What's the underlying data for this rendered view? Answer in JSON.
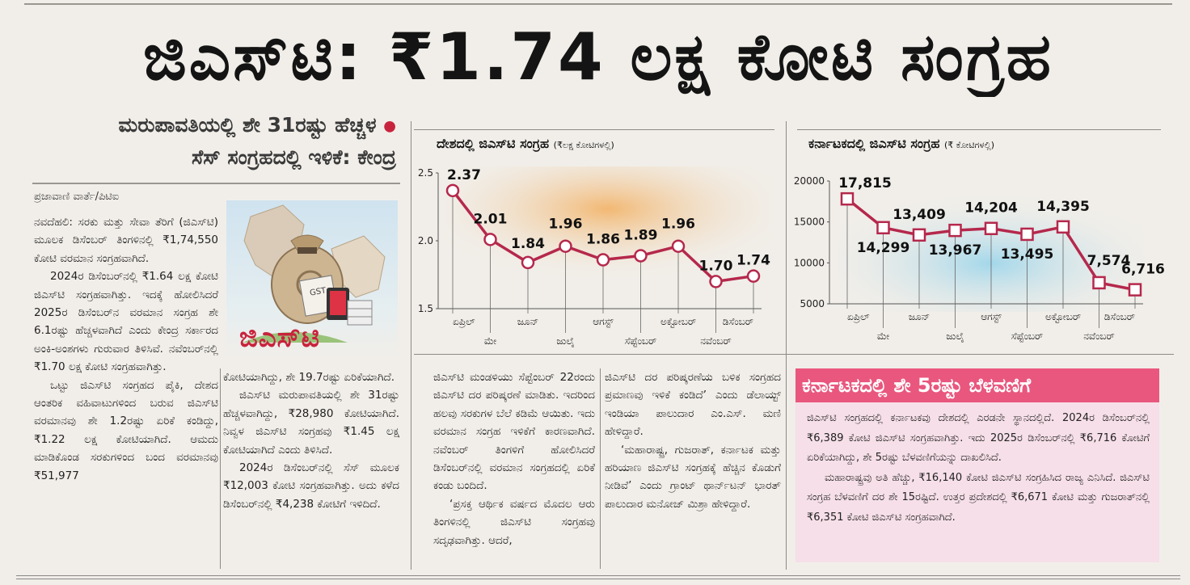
{
  "headline": "ಜಿಎಸ್‌ಟಿ: ₹1.74 ಲಕ್ಷ ಕೋಟಿ ಸಂಗ್ರಹ",
  "subheadline": {
    "line1": "ಮರುಪಾವತಿಯಲ್ಲಿ ಶೇ 31ರಷ್ಟು ಹೆಚ್ಚಳ",
    "line2": "ಸೆಸ್ ಸಂಗ್ರಹದಲ್ಲಿ ಇಳಿಕೆ: ಕೇಂದ್ರ"
  },
  "byline": "ಪ್ರಜಾವಾಣಿ ವಾರ್ತೆ/ಪಿಟಿಐ",
  "image": {
    "overlay_text": "ಜಿಎಸ್‌ಟಿ",
    "tag_text": "GST"
  },
  "columns": {
    "col1": [
      "ನವದೆಹಲಿ: ಸರಕು ಮತ್ತು ಸೇವಾ ತೆರಿಗೆ (ಜಿಎಸ್‌ಟಿ) ಮೂಲಕ ಡಿಸೆಂಬರ್ ತಿಂಗಳಿನಲ್ಲಿ ₹1,74,550 ಕೋಟಿ ವರಮಾನ ಸಂಗ್ರಹವಾಗಿದೆ.",
      "2024ರ ಡಿಸೆಂಬರ್‌ನಲ್ಲಿ ₹1.64 ಲಕ್ಷ ಕೋಟಿ ಜಿಎಸ್‌ಟಿ ಸಂಗ್ರಹವಾಗಿತ್ತು. ಇದಕ್ಕೆ ಹೋಲಿಸಿದರೆ 2025ರ ಡಿಸೆಂಬರ್‌ನ ವರಮಾನ ಸಂಗ್ರಹ ಶೇ 6.1ರಷ್ಟು ಹೆಚ್ಚಳವಾಗಿದೆ ಎಂದು ಕೇಂದ್ರ ಸರ್ಕಾರದ ಅಂಕಿ-ಅಂಶಗಳು ಗುರುವಾರ ತಿಳಿಸಿವೆ. ನವೆಂಬರ್‌ನಲ್ಲಿ ₹1.70 ಲಕ್ಷ ಕೋಟಿ ಸಂಗ್ರಹವಾಗಿತ್ತು.",
      "ಒಟ್ಟು ಜಿಎಸ್‌ಟಿ ಸಂಗ್ರಹದ ಪೈಕಿ, ದೇಶದ ಆಂತರಿಕ ವಹಿವಾಟುಗಳಿಂದ ಬರುವ ಜಿಎಸ್‌ಟಿ ವರಮಾನವು ಶೇ 1.2ರಷ್ಟು ಏರಿಕೆ ಕಂಡಿದ್ದು, ₹1.22 ಲಕ್ಷ ಕೋಟಿಯಾಗಿದೆ. ಆಮದು ಮಾಡಿಕೊಂಡ ಸರಕುಗಳಿಂದ ಬಂದ ವರಮಾನವು ₹51,977"
    ],
    "col2": [
      "ಕೋಟಿಯಾಗಿದ್ದು, ಶೇ 19.7ರಷ್ಟು ಏರಿಕೆಯಾಗಿದೆ.",
      "ಜಿಎಸ್‌ಟಿ ಮರುಪಾವತಿಯಲ್ಲಿ ಶೇ 31ರಷ್ಟು ಹೆಚ್ಚಳವಾಗಿದ್ದು, ₹28,980 ಕೋಟಿಯಾಗಿದೆ. ನಿವ್ವಳ ಜಿಎಸ್‌ಟಿ ಸಂಗ್ರಹವು ₹1.45 ಲಕ್ಷ ಕೋಟಿಯಾಗಿದೆ ಎಂದು ತಿಳಿಸಿದೆ.",
      "2024ರ ಡಿಸೆಂಬರ್‌ನಲ್ಲಿ ಸೆಸ್ ಮೂಲಕ ₹12,003 ಕೋಟಿ ಸಂಗ್ರಹವಾಗಿತ್ತು. ಅದು ಕಳೆದ ಡಿಸೆಂಬರ್‌ನಲ್ಲಿ ₹4,238 ಕೋಟಿಗೆ ಇಳಿದಿದೆ."
    ],
    "col3": [
      "ಜಿಎಸ್‌ಟಿ ಮಂಡಳಿಯು ಸೆಪ್ಟೆಂಬರ್ 22ರಂದು ಜಿಎಸ್‌ಟಿ ದರ ಪರಿಷ್ಕರಣೆ ಮಾಡಿತು. ಇದರಿಂದ ಹಲವು ಸರಕುಗಳ ಬೆಲೆ ಕಡಿಮೆ ಆಯಿತು. ಇದು ವರಮಾನ ಸಂಗ್ರಹ ಇಳಿಕೆಗೆ ಕಾರಣವಾಗಿದೆ. ನವೆಂಬರ್ ತಿಂಗಳಿಗೆ ಹೋಲಿಸಿದರೆ ಡಿಸೆಂಬರ್‌ನಲ್ಲಿ ವರಮಾನ ಸಂಗ್ರಹದಲ್ಲಿ ಏರಿಕೆ ಕಂಡು ಬಂದಿದೆ.",
      "‘ಪ್ರಸಕ್ತ ಆರ್ಥಿಕ ವರ್ಷದ ಮೊದಲ ಆರು ತಿಂಗಳಿನಲ್ಲಿ ಜಿಎಸ್‌ಟಿ ಸಂಗ್ರಹವು ಸದೃಢವಾಗಿತ್ತು. ಆದರೆ,"
    ],
    "col4": [
      "ಜಿಎಸ್‌ಟಿ ದರ ಪರಿಷ್ಕರಣೆಯ ಬಳಿಕ ಸಂಗ್ರಹದ ಪ್ರಮಾಣವು ಇಳಿಕೆ ಕಂಡಿದೆ’ ಎಂದು ಡೆಲಾಯ್ಟ್ ಇಂಡಿಯಾ ಪಾಲುದಾರ ಎಂ.ಎಸ್. ಮಣಿ ಹೇಳಿದ್ದಾರೆ.",
      "‘ಮಹಾರಾಷ್ಟ್ರ, ಗುಜರಾತ್, ಕರ್ನಾಟಕ ಮತ್ತು ಹರಿಯಾಣ ಜಿಎಸ್‌ಟಿ ಸಂಗ್ರಹಕ್ಕೆ ಹೆಚ್ಚಿನ ಕೊಡುಗೆ ನೀಡಿವೆ’ ಎಂದು ಗ್ರಾಂಟ್ ಥಾರ್ನ್‌ಟನ್ ಭಾರತ್ ಪಾಲುದಾರ ಮನೋಜ್ ಮಿಶ್ರಾ ಹೇಳಿದ್ದಾರೆ."
    ]
  },
  "box": {
    "title": "ಕರ್ನಾಟಕದಲ್ಲಿ ಶೇ 5ರಷ್ಟು ಬೆಳವಣಿಗೆ",
    "paragraphs": [
      "ಜಿಎಸ್‌ಟಿ ಸಂಗ್ರಹದಲ್ಲಿ ಕರ್ನಾಟಕವು ದೇಶದಲ್ಲಿ ಎರಡನೇ ಸ್ಥಾನದಲ್ಲಿದೆ. 2024ರ ಡಿಸೆಂಬರ್‌ನಲ್ಲಿ ₹6,389 ಕೋಟಿ ಜಿಎಸ್‌ಟಿ ಸಂಗ್ರಹವಾಗಿತ್ತು. ಇದು 2025ರ ಡಿಸೆಂಬರ್‌ನಲ್ಲಿ ₹6,716 ಕೋಟಿಗೆ ಏರಿಕೆಯಾಗಿದ್ದು, ಶೇ 5ರಷ್ಟು ಬೆಳವಣಿಗೆಯನ್ನು ದಾಖಲಿಸಿದೆ.",
      "ಮಹಾರಾಷ್ಟ್ರವು ಅತಿ ಹೆಚ್ಚು, ₹16,140 ಕೋಟಿ ಜಿಎಸ್‌ಟಿ ಸಂಗ್ರಹಿಸಿದ ರಾಜ್ಯ ಎನಿಸಿದೆ. ಜಿಎಸ್‌ಟಿ ಸಂಗ್ರಹ ಬೆಳವಣಿಗೆ ದರ ಶೇ 15ರಷ್ಟಿದೆ. ಉತ್ತರ ಪ್ರದೇಶದಲ್ಲಿ ₹6,671 ಕೋಟಿ ಮತ್ತು ಗುಜರಾತ್‌ನಲ್ಲಿ ₹6,351 ಕೋಟಿ ಜಿಎಸ್‌ಟಿ ಸಂಗ್ರಹವಾಗಿದೆ."
    ]
  },
  "colors": {
    "line": "#b5284c",
    "box_title_bg": "#e9577e",
    "box_bg": "#f6dfe8",
    "bullet": "#c8233d"
  },
  "chart_data": [
    {
      "type": "line",
      "title": "ದೇಶದಲ್ಲಿ ಜಿಎಸ್‌ಟಿ ಸಂಗ್ರಹ",
      "unit": "(₹ಲಕ್ಷ ಕೋಟಿಗಳಲ್ಲಿ)",
      "categories": [
        "ಏಪ್ರಿಲ್",
        "ಮೇ",
        "ಜೂನ್",
        "ಜುಲೈ",
        "ಆಗಸ್ಟ್",
        "ಸೆಪ್ಟೆಂಬರ್",
        "ಅಕ್ಟೋಬರ್",
        "ನವೆಂಬರ್",
        "ಡಿಸೆಂಬರ್"
      ],
      "values": [
        2.37,
        2.01,
        1.84,
        1.96,
        1.86,
        1.89,
        1.96,
        1.7,
        1.74
      ],
      "value_labels": [
        "2.37",
        "2.01",
        "1.84",
        "1.96",
        "1.86",
        "1.89",
        "1.96",
        "1.70",
        "1.74"
      ],
      "yticks": [
        "1.5",
        "2.0",
        "2.5"
      ],
      "ylim": [
        1.5,
        2.5
      ]
    },
    {
      "type": "line",
      "title": "ಕರ್ನಾಟಕದಲ್ಲಿ ಜಿಎಸ್‌ಟಿ ಸಂಗ್ರಹ",
      "unit": "(₹ ಕೋಟಿಗಳಲ್ಲಿ)",
      "categories": [
        "ಏಪ್ರಿಲ್",
        "ಮೇ",
        "ಜೂನ್",
        "ಜುಲೈ",
        "ಆಗಸ್ಟ್",
        "ಸೆಪ್ಟೆಂಬರ್",
        "ಅಕ್ಟೋಬರ್",
        "ನವೆಂಬರ್",
        "ಡಿಸೆಂಬರ್"
      ],
      "values": [
        17815,
        14299,
        13409,
        13967,
        14204,
        13495,
        14395,
        7574,
        6716
      ],
      "value_labels": [
        "17,815",
        "14,299",
        "13,409",
        "13,967",
        "14,204",
        "13,495",
        "14,395",
        "7,574",
        "6,716"
      ],
      "yticks": [
        "5000",
        "10000",
        "15000",
        "20000"
      ],
      "ylim": [
        5000,
        20000
      ]
    }
  ]
}
